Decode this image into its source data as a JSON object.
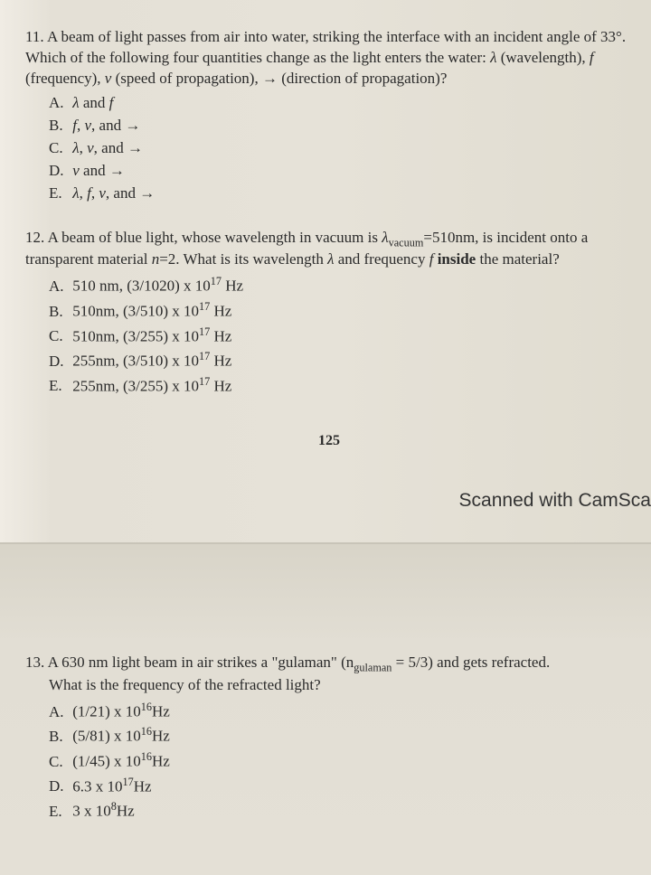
{
  "q11": {
    "number": "11.",
    "text_parts": {
      "p1": "A beam of light passes from air into water, striking the interface with an incident angle of 33°. Which of the following four quantities change as the light enters the water: ",
      "lambda": "λ",
      "p2": " (wavelength), ",
      "f": "f ",
      "p3": "(frequency), ",
      "v": "v",
      "p4": " (speed of propagation), ",
      "arrow": "→",
      "p5": " (direction of propagation)?"
    },
    "options": {
      "A": {
        "label": "A.",
        "t1": "λ",
        "t2": " and ",
        "t3": "f"
      },
      "B": {
        "label": "B.",
        "t1": "f",
        "t2": ", ",
        "t3": "v",
        "t4": ", and ",
        "t5": "→"
      },
      "C": {
        "label": "C.",
        "t1": "λ",
        "t2": ", ",
        "t3": "v",
        "t4": ", and ",
        "t5": "→"
      },
      "D": {
        "label": "D.",
        "t1": "v",
        "t2": " and ",
        "t3": "→"
      },
      "E": {
        "label": "E.",
        "t1": "λ",
        "t2": ", ",
        "t3": "f",
        "t4": ", ",
        "t5": "v",
        "t6": ", and ",
        "t7": "→"
      }
    }
  },
  "q12": {
    "number": "12.",
    "p1": "A beam of blue light, whose wavelength in vacuum is ",
    "lam": "λ",
    "sub_vac": "vacuum",
    "eq": "=510nm, is incident onto a transparent material ",
    "n": "n",
    "eq2": "=2. What is its wavelength ",
    "lam2": "λ",
    "p2": " and frequency ",
    "f": "f ",
    "inside": "inside",
    "p3": " the material?",
    "options": {
      "A": {
        "label": "A.",
        "text": "510 nm, (3/1020) x 10",
        "exp": "17",
        "hz": " Hz"
      },
      "B": {
        "label": "B.",
        "text": "510nm, (3/510) x 10",
        "exp": "17",
        "hz": " Hz"
      },
      "C": {
        "label": "C.",
        "text": "510nm, (3/255) x 10",
        "exp": "17",
        "hz": " Hz"
      },
      "D": {
        "label": "D.",
        "text": "255nm, (3/510) x 10",
        "exp": "17",
        "hz": " Hz"
      },
      "E": {
        "label": "E.",
        "text": "255nm, (3/255) x 10",
        "exp": "17",
        "hz": " Hz"
      }
    }
  },
  "page_number": "125",
  "scanned_text": "Scanned with CamSca",
  "q13": {
    "number": "13.",
    "p1": "A 630 nm light beam in air strikes a \"gulaman\" (n",
    "sub_g": "gulaman",
    "p2": " = 5/3) and gets refracted.",
    "p3": "What is the frequency of the refracted light?",
    "options": {
      "A": {
        "label": "A.",
        "text": "(1/21) x 10",
        "exp": "16",
        "hz": "Hz"
      },
      "B": {
        "label": "B.",
        "text": "(5/81) x 10",
        "exp": "16",
        "hz": "Hz"
      },
      "C": {
        "label": "C.",
        "text": "(1/45) x 10",
        "exp": "16",
        "hz": "Hz"
      },
      "D": {
        "label": "D.",
        "text": "6.3 x 10",
        "exp": "17",
        "hz": "Hz"
      },
      "E": {
        "label": "E.",
        "text": "3 x 10",
        "exp": "8",
        "hz": "Hz"
      }
    }
  }
}
